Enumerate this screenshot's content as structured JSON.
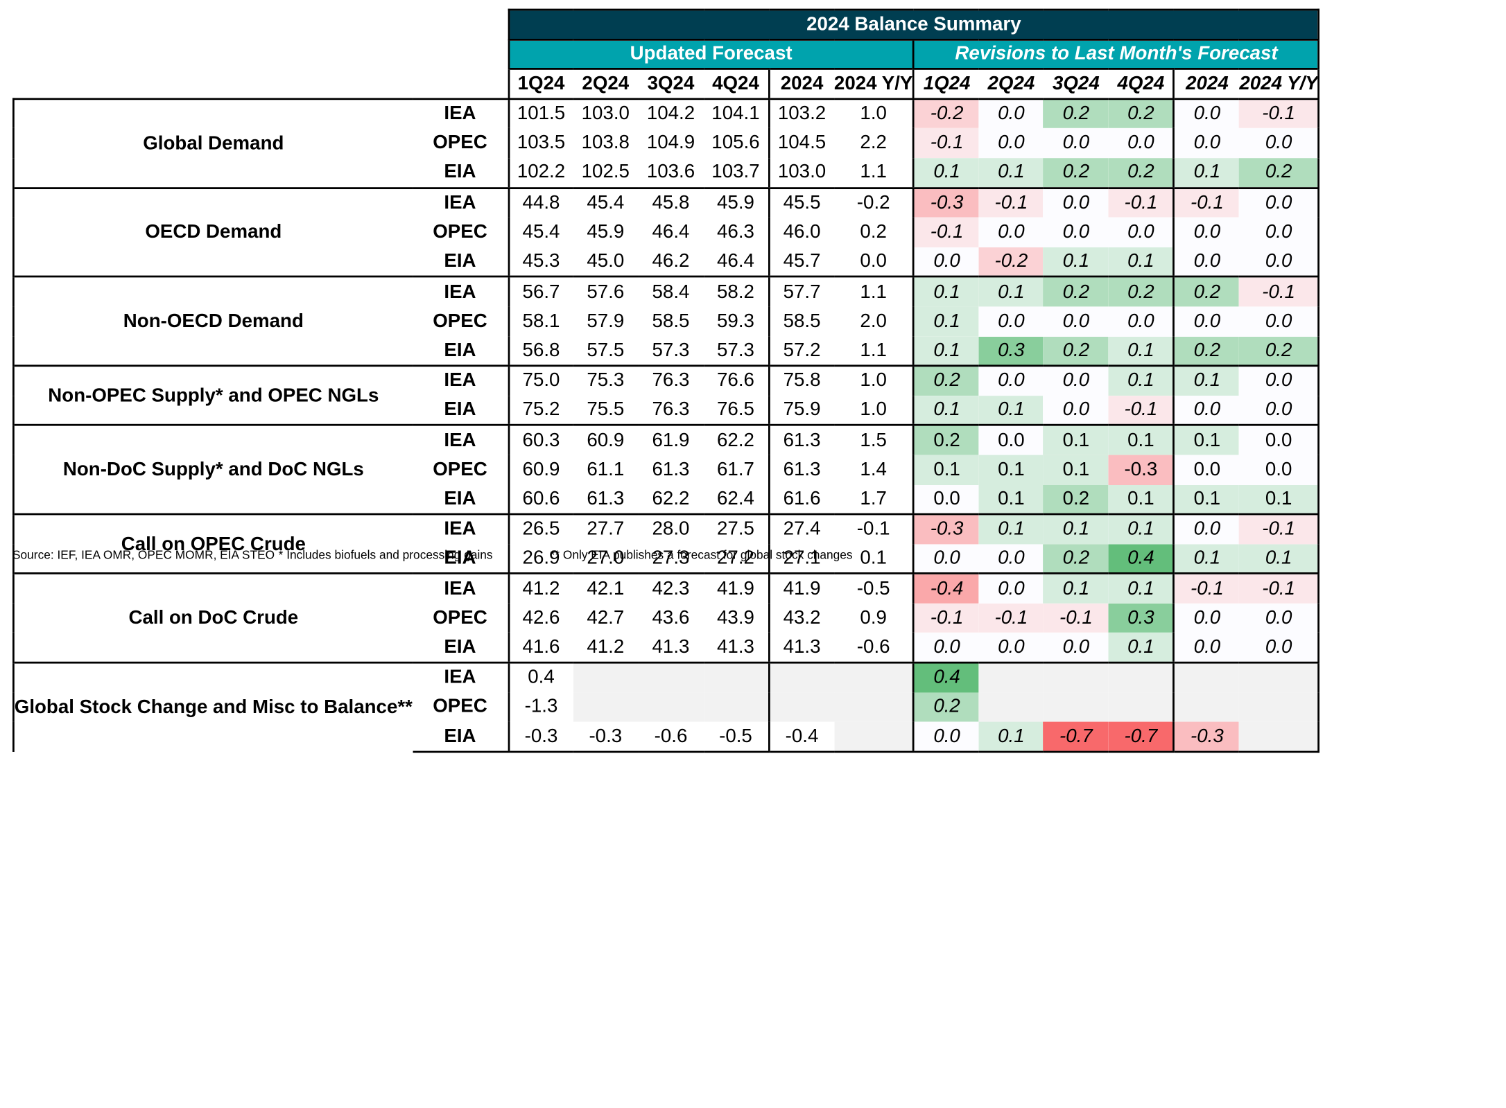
{
  "title": "2024 Balance Summary",
  "sections": {
    "updated": "Updated Forecast",
    "revisions": "Revisions to Last Month's Forecast"
  },
  "columns": [
    "1Q24",
    "2Q24",
    "3Q24",
    "4Q24",
    "2024",
    "2024 Y/Y"
  ],
  "groups": [
    {
      "label": "Global Demand",
      "rows": [
        {
          "src": "IEA",
          "f": [
            "101.5",
            "103.0",
            "104.2",
            "104.1",
            "103.2",
            "1.0"
          ],
          "r": [
            "-0.2",
            "0.0",
            "0.2",
            "0.2",
            "0.0",
            "-0.1"
          ]
        },
        {
          "src": "OPEC",
          "f": [
            "103.5",
            "103.8",
            "104.9",
            "105.6",
            "104.5",
            "2.2"
          ],
          "r": [
            "-0.1",
            "0.0",
            "0.0",
            "0.0",
            "0.0",
            "0.0"
          ]
        },
        {
          "src": "EIA",
          "f": [
            "102.2",
            "102.5",
            "103.6",
            "103.7",
            "103.0",
            "1.1"
          ],
          "r": [
            "0.1",
            "0.1",
            "0.2",
            "0.2",
            "0.1",
            "0.2"
          ]
        }
      ]
    },
    {
      "label": "OECD Demand",
      "rows": [
        {
          "src": "IEA",
          "f": [
            "44.8",
            "45.4",
            "45.8",
            "45.9",
            "45.5",
            "-0.2"
          ],
          "r": [
            "-0.3",
            "-0.1",
            "0.0",
            "-0.1",
            "-0.1",
            "0.0"
          ]
        },
        {
          "src": "OPEC",
          "f": [
            "45.4",
            "45.9",
            "46.4",
            "46.3",
            "46.0",
            "0.2"
          ],
          "r": [
            "-0.1",
            "0.0",
            "0.0",
            "0.0",
            "0.0",
            "0.0"
          ]
        },
        {
          "src": "EIA",
          "f": [
            "45.3",
            "45.0",
            "46.2",
            "46.4",
            "45.7",
            "0.0"
          ],
          "r": [
            "0.0",
            "-0.2",
            "0.1",
            "0.1",
            "0.0",
            "0.0"
          ]
        }
      ]
    },
    {
      "label": "Non-OECD Demand",
      "rows": [
        {
          "src": "IEA",
          "f": [
            "56.7",
            "57.6",
            "58.4",
            "58.2",
            "57.7",
            "1.1"
          ],
          "r": [
            "0.1",
            "0.1",
            "0.2",
            "0.2",
            "0.2",
            "-0.1"
          ]
        },
        {
          "src": "OPEC",
          "f": [
            "58.1",
            "57.9",
            "58.5",
            "59.3",
            "58.5",
            "2.0"
          ],
          "r": [
            "0.1",
            "0.0",
            "0.0",
            "0.0",
            "0.0",
            "0.0"
          ]
        },
        {
          "src": "EIA",
          "f": [
            "56.8",
            "57.5",
            "57.3",
            "57.3",
            "57.2",
            "1.1"
          ],
          "r": [
            "0.1",
            "0.3",
            "0.2",
            "0.1",
            "0.2",
            "0.2"
          ]
        }
      ]
    },
    {
      "label": "Non-OPEC Supply* and OPEC NGLs",
      "rows": [
        {
          "src": "IEA",
          "f": [
            "75.0",
            "75.3",
            "76.3",
            "76.6",
            "75.8",
            "1.0"
          ],
          "r": [
            "0.2",
            "0.0",
            "0.0",
            "0.1",
            "0.1",
            "0.0"
          ]
        },
        {
          "src": "EIA",
          "f": [
            "75.2",
            "75.5",
            "76.3",
            "76.5",
            "75.9",
            "1.0"
          ],
          "r": [
            "0.1",
            "0.1",
            "0.0",
            "-0.1",
            "0.0",
            "0.0"
          ]
        }
      ]
    },
    {
      "label": "Non-DoC Supply* and DoC NGLs",
      "plain": true,
      "rows": [
        {
          "src": "IEA",
          "f": [
            "60.3",
            "60.9",
            "61.9",
            "62.2",
            "61.3",
            "1.5"
          ],
          "r": [
            "0.2",
            "0.0",
            "0.1",
            "0.1",
            "0.1",
            "0.0"
          ]
        },
        {
          "src": "OPEC",
          "f": [
            "60.9",
            "61.1",
            "61.3",
            "61.7",
            "61.3",
            "1.4"
          ],
          "r": [
            "0.1",
            "0.1",
            "0.1",
            "-0.3",
            "0.0",
            "0.0"
          ]
        },
        {
          "src": "EIA",
          "f": [
            "60.6",
            "61.3",
            "62.2",
            "62.4",
            "61.6",
            "1.7"
          ],
          "r": [
            "0.0",
            "0.1",
            "0.2",
            "0.1",
            "0.1",
            "0.1"
          ]
        }
      ]
    },
    {
      "label": "Call on OPEC Crude",
      "rows": [
        {
          "src": "IEA",
          "f": [
            "26.5",
            "27.7",
            "28.0",
            "27.5",
            "27.4",
            "-0.1"
          ],
          "r": [
            "-0.3",
            "0.1",
            "0.1",
            "0.1",
            "0.0",
            "-0.1"
          ]
        },
        {
          "src": "EIA",
          "f": [
            "26.9",
            "27.0",
            "27.3",
            "27.2",
            "27.1",
            "0.1"
          ],
          "r": [
            "0.0",
            "0.0",
            "0.2",
            "0.4",
            "0.1",
            "0.1"
          ]
        }
      ]
    },
    {
      "label": "Call on DoC Crude",
      "rows": [
        {
          "src": "IEA",
          "f": [
            "41.2",
            "42.1",
            "42.3",
            "41.9",
            "41.9",
            "-0.5"
          ],
          "r": [
            "-0.4",
            "0.0",
            "0.1",
            "0.1",
            "-0.1",
            "-0.1"
          ]
        },
        {
          "src": "OPEC",
          "f": [
            "42.6",
            "42.7",
            "43.6",
            "43.9",
            "43.2",
            "0.9"
          ],
          "r": [
            "-0.1",
            "-0.1",
            "-0.1",
            "0.3",
            "0.0",
            "0.0"
          ]
        },
        {
          "src": "EIA",
          "f": [
            "41.6",
            "41.2",
            "41.3",
            "41.3",
            "41.3",
            "-0.6"
          ],
          "r": [
            "0.0",
            "0.0",
            "0.0",
            "0.1",
            "0.0",
            "0.0"
          ]
        }
      ]
    },
    {
      "label": "Global Stock Change and Misc to Balance**",
      "rows": [
        {
          "src": "IEA",
          "f": [
            "0.4",
            null,
            null,
            null,
            null,
            null
          ],
          "r": [
            "0.4",
            null,
            null,
            null,
            null,
            null
          ]
        },
        {
          "src": "OPEC",
          "f": [
            "-1.3",
            null,
            null,
            null,
            null,
            null
          ],
          "r": [
            "0.2",
            null,
            null,
            null,
            null,
            null
          ]
        },
        {
          "src": "EIA",
          "f": [
            "-0.3",
            "-0.3",
            "-0.6",
            "-0.5",
            "-0.4",
            null
          ],
          "r": [
            "0.0",
            "0.1",
            "-0.7",
            "-0.7",
            "-0.3",
            null
          ]
        }
      ]
    }
  ],
  "footnotes": {
    "source": "Source: IEF, IEA OMR, OPEC MOMR, EIA STEO",
    "biofuels": "* Includes biofuels and processing gains",
    "stock": "** Only EIA publishes a forecast for global stock changes"
  },
  "colors": {
    "title_bg": "#003e51",
    "section_bg": "#00a3ad",
    "positive": "#63be7b",
    "negative": "#f8696b",
    "neutral": "#fcfcff",
    "blank_fill": "#f2f2f2"
  }
}
